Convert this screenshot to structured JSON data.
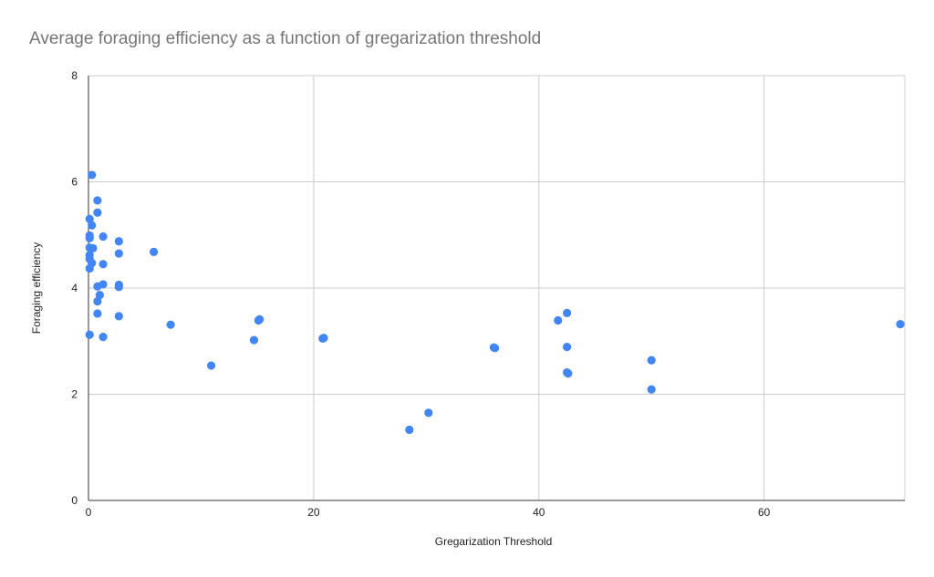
{
  "chart_data": {
    "type": "scatter",
    "title": "Average foraging efficiency as a function of gregarization threshold",
    "xlabel": "Gregarization Threshold",
    "ylabel": "Foraging efficiency",
    "xlim": [
      0,
      72.5
    ],
    "ylim": [
      0,
      8
    ],
    "xticks": [
      0,
      20,
      40,
      60
    ],
    "yticks": [
      0,
      2,
      4,
      6,
      8
    ],
    "grid": true,
    "point_color": "#4285f4",
    "series": [
      {
        "points": [
          [
            0.3,
            6.13
          ],
          [
            0.8,
            5.65
          ],
          [
            0.8,
            5.42
          ],
          [
            0.1,
            5.3
          ],
          [
            0.3,
            5.18
          ],
          [
            0.1,
            4.99
          ],
          [
            0.1,
            4.94
          ],
          [
            1.3,
            4.97
          ],
          [
            2.7,
            4.88
          ],
          [
            0.1,
            4.76
          ],
          [
            0.4,
            4.75
          ],
          [
            2.7,
            4.65
          ],
          [
            5.8,
            4.68
          ],
          [
            0.1,
            4.62
          ],
          [
            0.1,
            4.55
          ],
          [
            0.3,
            4.47
          ],
          [
            1.3,
            4.45
          ],
          [
            0.1,
            4.37
          ],
          [
            0.8,
            4.03
          ],
          [
            1.3,
            4.07
          ],
          [
            2.7,
            4.06
          ],
          [
            2.7,
            4.02
          ],
          [
            1.0,
            3.87
          ],
          [
            0.8,
            3.75
          ],
          [
            0.8,
            3.52
          ],
          [
            2.7,
            3.47
          ],
          [
            7.3,
            3.31
          ],
          [
            0.1,
            3.12
          ],
          [
            1.3,
            3.08
          ],
          [
            10.9,
            2.54
          ],
          [
            14.7,
            3.02
          ],
          [
            15.1,
            3.39
          ],
          [
            15.2,
            3.41
          ],
          [
            20.8,
            3.05
          ],
          [
            20.9,
            3.06
          ],
          [
            28.5,
            1.33
          ],
          [
            30.2,
            1.65
          ],
          [
            36.0,
            2.88
          ],
          [
            36.1,
            2.87
          ],
          [
            41.7,
            3.39
          ],
          [
            42.5,
            3.53
          ],
          [
            42.5,
            2.89
          ],
          [
            42.5,
            2.41
          ],
          [
            42.6,
            2.39
          ],
          [
            50.0,
            2.64
          ],
          [
            50.0,
            2.09
          ],
          [
            72.1,
            3.32
          ]
        ]
      }
    ]
  }
}
